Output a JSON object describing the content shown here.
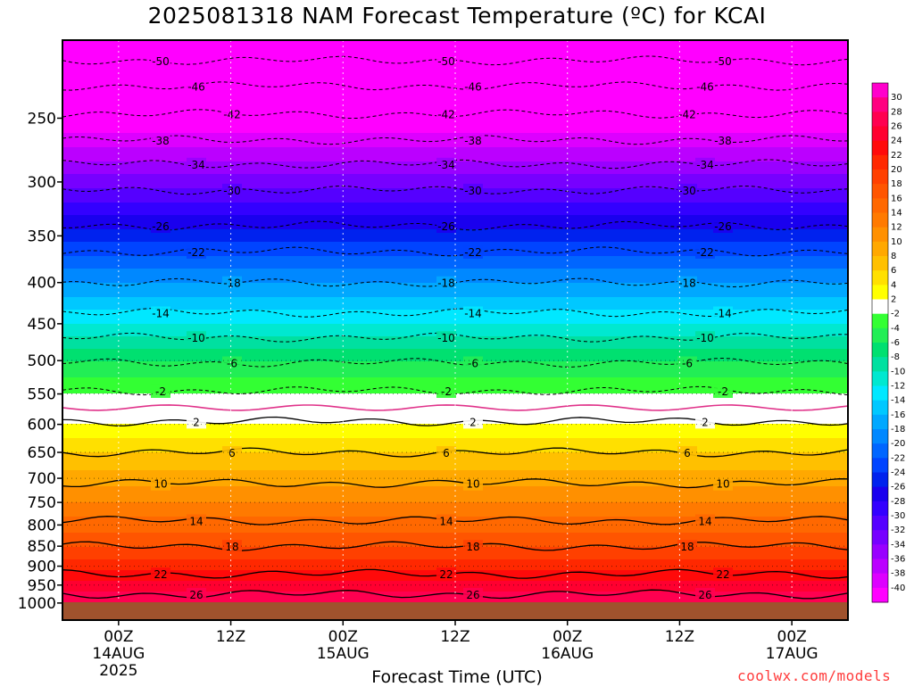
{
  "title": "2025081318 NAM Forecast Temperature (ºC) for KCAI",
  "credit": "coolwx.com/models",
  "chart_data": {
    "type": "heatmap",
    "xlabel": "Forecast Time (UTC)",
    "ylabel": "",
    "y_scale": "log-pressure",
    "ylim": [
      1050,
      200
    ],
    "y_ticks": [
      250,
      300,
      350,
      400,
      450,
      500,
      550,
      600,
      650,
      700,
      750,
      800,
      850,
      900,
      950,
      1000
    ],
    "x_ticks": [
      {
        "hour": 6,
        "label": "00Z",
        "date": "14AUG",
        "year": "2025"
      },
      {
        "hour": 18,
        "label": "12Z",
        "date": "",
        "year": ""
      },
      {
        "hour": 30,
        "label": "00Z",
        "date": "15AUG",
        "year": ""
      },
      {
        "hour": 42,
        "label": "12Z",
        "date": "",
        "year": ""
      },
      {
        "hour": 54,
        "label": "00Z",
        "date": "16AUG",
        "year": ""
      },
      {
        "hour": 66,
        "label": "12Z",
        "date": "",
        "year": ""
      },
      {
        "hour": 78,
        "label": "00Z",
        "date": "17AUG",
        "year": ""
      }
    ],
    "xlim": [
      0,
      84
    ],
    "temperature_profile": [
      {
        "p": 1000,
        "t": 28
      },
      {
        "p": 950,
        "t": 25
      },
      {
        "p": 900,
        "t": 21
      },
      {
        "p": 850,
        "t": 18
      },
      {
        "p": 800,
        "t": 15
      },
      {
        "p": 750,
        "t": 12
      },
      {
        "p": 700,
        "t": 9
      },
      {
        "p": 650,
        "t": 6
      },
      {
        "p": 600,
        "t": 2
      },
      {
        "p": 550,
        "t": -2
      },
      {
        "p": 500,
        "t": -6
      },
      {
        "p": 450,
        "t": -12
      },
      {
        "p": 400,
        "t": -18
      },
      {
        "p": 350,
        "t": -25
      },
      {
        "p": 300,
        "t": -33
      },
      {
        "p": 250,
        "t": -42
      },
      {
        "p": 200,
        "t": -55
      }
    ],
    "contours": [
      {
        "label": "-50",
        "p": 212,
        "style": "dashed"
      },
      {
        "label": "-46",
        "p": 228,
        "style": "dashed"
      },
      {
        "label": "-42",
        "p": 247,
        "style": "dashed"
      },
      {
        "label": "-38",
        "p": 266,
        "style": "dashed"
      },
      {
        "label": "-34",
        "p": 285,
        "style": "dashed"
      },
      {
        "label": "-30",
        "p": 307,
        "style": "dashed"
      },
      {
        "label": "-26",
        "p": 340,
        "style": "dashed"
      },
      {
        "label": "-22",
        "p": 366,
        "style": "dashed"
      },
      {
        "label": "-18",
        "p": 400,
        "style": "dashed"
      },
      {
        "label": "-14",
        "p": 436,
        "style": "dashed"
      },
      {
        "label": "-10",
        "p": 468,
        "style": "dashed"
      },
      {
        "label": "-6",
        "p": 503,
        "style": "dashed"
      },
      {
        "label": "-2",
        "p": 545,
        "style": "dashed"
      },
      {
        "label": "2",
        "p": 595,
        "style": "solid"
      },
      {
        "label": "6",
        "p": 650,
        "style": "solid"
      },
      {
        "label": "10",
        "p": 710,
        "style": "solid"
      },
      {
        "label": "14",
        "p": 790,
        "style": "solid"
      },
      {
        "label": "18",
        "p": 850,
        "style": "solid"
      },
      {
        "label": "22",
        "p": 920,
        "style": "solid"
      },
      {
        "label": "26",
        "p": 975,
        "style": "solid"
      }
    ],
    "zero_isotherm_p": 572,
    "colorbar": {
      "labels": [
        "30",
        "28",
        "26",
        "24",
        "22",
        "20",
        "18",
        "16",
        "14",
        "12",
        "10",
        "8",
        "6",
        "4",
        "2",
        "-2",
        "-4",
        "-6",
        "-8",
        "-10",
        "-12",
        "-14",
        "-16",
        "-18",
        "-20",
        "-22",
        "-24",
        "-26",
        "-28",
        "-30",
        "-32",
        "-34",
        "-36",
        "-38",
        "-40"
      ],
      "colors": [
        "#ff00cc",
        "#ff0080",
        "#ff0050",
        "#ff0030",
        "#ff0a0a",
        "#ff2800",
        "#ff4000",
        "#ff5500",
        "#ff6800",
        "#ff7a00",
        "#ff9000",
        "#ffa800",
        "#ffc000",
        "#ffe000",
        "#ffff00",
        "#ffffff",
        "#33ff33",
        "#22ee55",
        "#00e070",
        "#00e0a0",
        "#00e8d0",
        "#00e8ff",
        "#00c8ff",
        "#00a8ff",
        "#0088ff",
        "#0066ff",
        "#0044ff",
        "#0022ee",
        "#1a00ee",
        "#3300ff",
        "#5500ff",
        "#7700ff",
        "#9900ff",
        "#bb00ff",
        "#dd00ff",
        "#ff00ff"
      ]
    }
  }
}
